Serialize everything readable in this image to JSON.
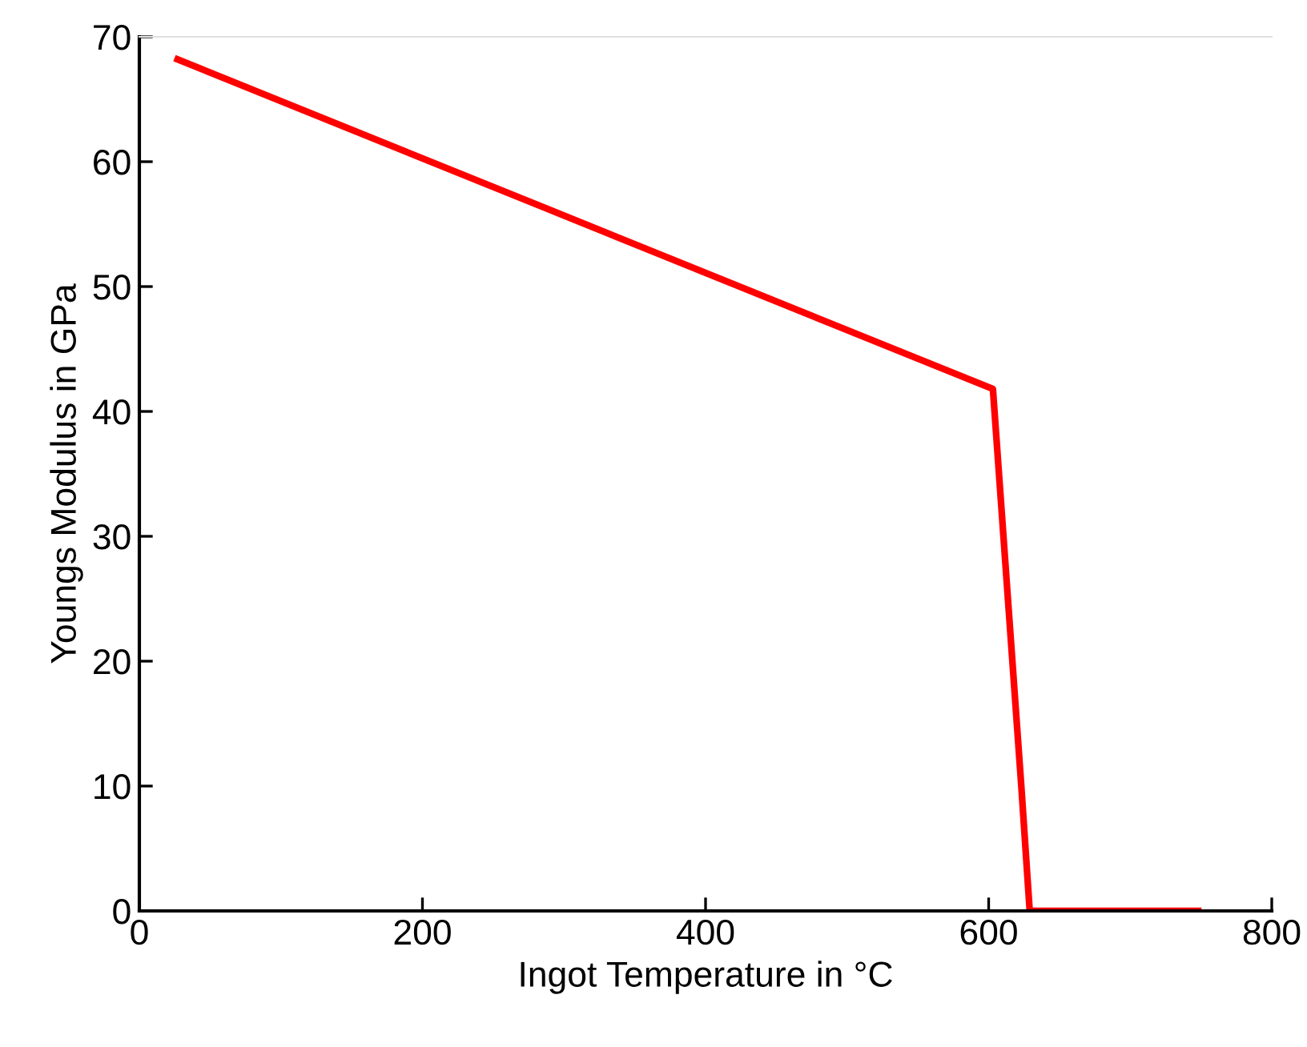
{
  "chart_data": {
    "type": "line",
    "xlabel": "Ingot Temperature in °C",
    "ylabel": "Youngs Modulus in GPa",
    "x": [
      27,
      603,
      623,
      629,
      748
    ],
    "series": [
      {
        "color": "#ff0000",
        "values": [
          68.2,
          41.8,
          10.1,
          0,
          0
        ]
      }
    ],
    "xlim": [
      0,
      800
    ],
    "ylim": [
      0,
      70
    ],
    "xticks": [
      0,
      200,
      400,
      600,
      800
    ],
    "yticks": [
      0,
      10,
      20,
      30,
      40,
      50,
      60,
      70
    ],
    "grid": false,
    "legend": false,
    "marker": "none",
    "line_style": "solid"
  }
}
